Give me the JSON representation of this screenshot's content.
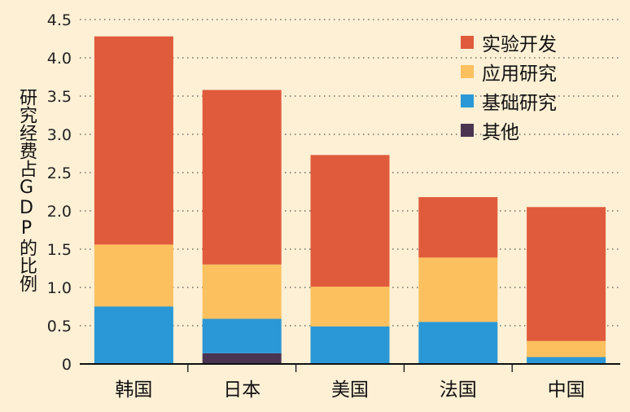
{
  "chart_data": {
    "type": "bar",
    "stacked": true,
    "ylabel": "研究经费占GDP的比例",
    "xlabel": "",
    "ylim": [
      0,
      4.5
    ],
    "yticks": [
      "0",
      "0.5",
      "1.0",
      "1.5",
      "2.0",
      "2.5",
      "3.0",
      "3.5",
      "4.0",
      "4.5"
    ],
    "grid": "horizontal dotted",
    "legend_position": "top-right",
    "categories": [
      "韩国",
      "日本",
      "美国",
      "法国",
      "中国"
    ],
    "series": [
      {
        "name": "其他",
        "color": "#4a3452",
        "values": [
          0,
          0.14,
          0,
          0,
          0
        ]
      },
      {
        "name": "基础研究",
        "color": "#2a98d6",
        "values": [
          0.75,
          0.45,
          0.49,
          0.55,
          0.09
        ]
      },
      {
        "name": "应用研究",
        "color": "#fcc05e",
        "values": [
          0.81,
          0.71,
          0.52,
          0.84,
          0.21
        ]
      },
      {
        "name": "实验开发",
        "color": "#e05b3c",
        "values": [
          2.72,
          2.28,
          1.72,
          0.79,
          1.75
        ]
      }
    ],
    "legend_order": [
      "实验开发",
      "应用研究",
      "基础研究",
      "其他"
    ]
  }
}
